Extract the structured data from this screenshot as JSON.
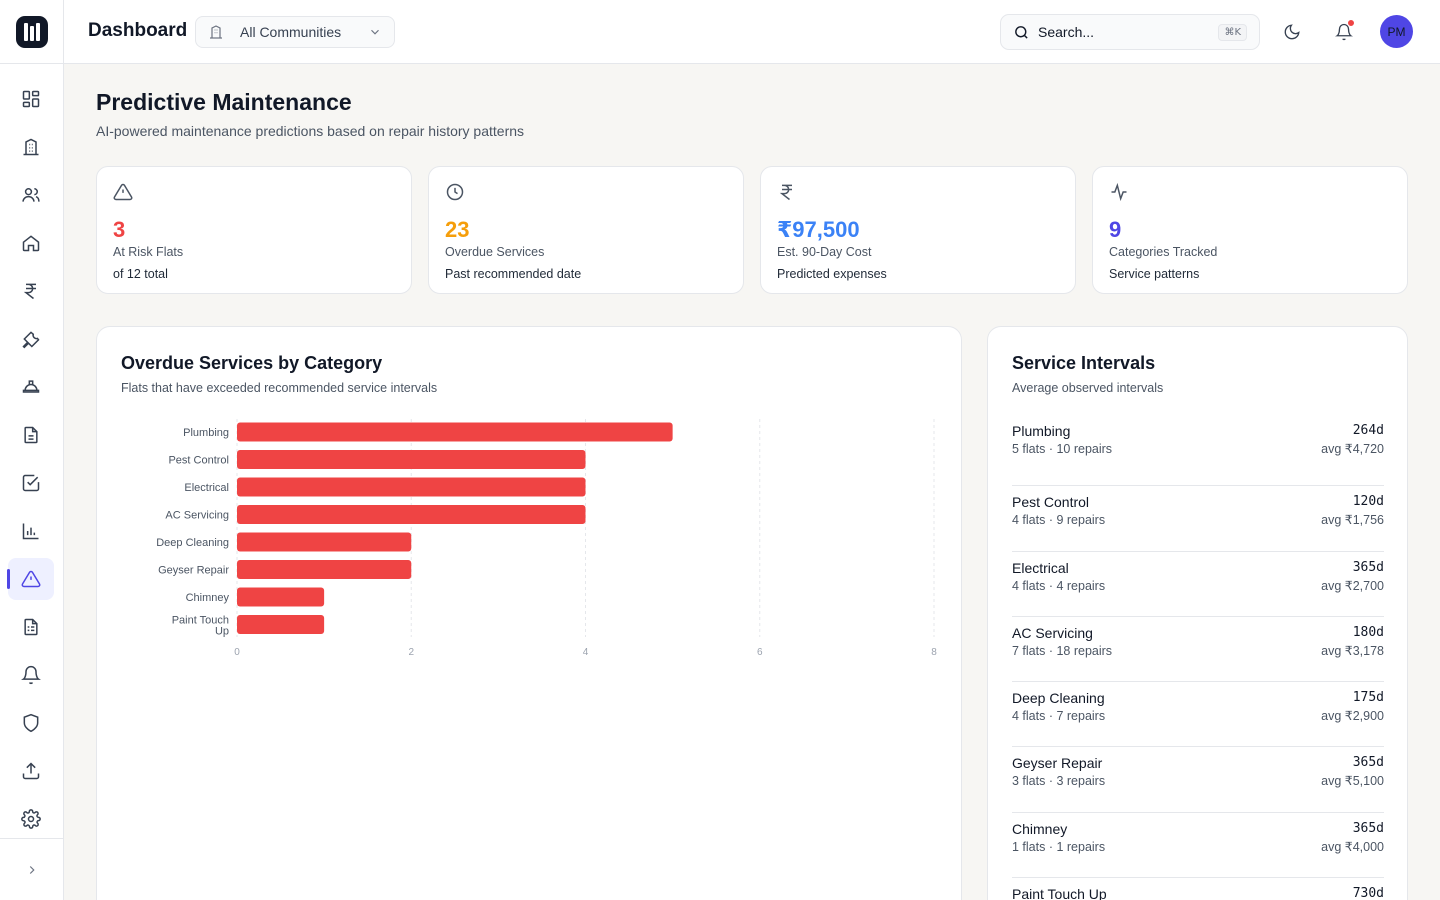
{
  "header": {
    "title": "Dashboard",
    "community_select": "All Communities",
    "search_placeholder": "Search...",
    "search_shortcut": "⌘K",
    "avatar_initials": "PM"
  },
  "sidebar": {
    "items": [
      {
        "icon": "grid-icon",
        "active": false
      },
      {
        "icon": "building-icon",
        "active": false
      },
      {
        "icon": "users-icon",
        "active": false
      },
      {
        "icon": "home-icon",
        "active": false
      },
      {
        "icon": "rupee-icon",
        "active": false
      },
      {
        "icon": "wrench-icon",
        "active": false
      },
      {
        "icon": "hard-hat-icon",
        "active": false
      },
      {
        "icon": "document-icon",
        "active": false
      },
      {
        "icon": "checkbox-icon",
        "active": false
      },
      {
        "icon": "bar-chart-icon",
        "active": false
      },
      {
        "icon": "alert-triangle-icon",
        "active": true
      },
      {
        "icon": "spreadsheet-icon",
        "active": false
      },
      {
        "icon": "bell-icon",
        "active": false
      },
      {
        "icon": "shield-icon",
        "active": false
      },
      {
        "icon": "upload-icon",
        "active": false
      },
      {
        "icon": "settings-icon",
        "active": false
      }
    ]
  },
  "page": {
    "title": "Predictive Maintenance",
    "subtitle": "AI-powered maintenance predictions based on repair history patterns"
  },
  "stats": [
    {
      "icon": "alert-triangle-icon",
      "value": "3",
      "label": "At Risk Flats",
      "sub": "of 12 total",
      "color": "#ef4444"
    },
    {
      "icon": "clock-icon",
      "value": "23",
      "label": "Overdue Services",
      "sub": "Past recommended date",
      "color": "#f59e0b"
    },
    {
      "icon": "rupee-icon",
      "value": "₹97,500",
      "label": "Est. 90-Day Cost",
      "sub": "Predicted expenses",
      "color": "#3b82f6"
    },
    {
      "icon": "activity-icon",
      "value": "9",
      "label": "Categories Tracked",
      "sub": "Service patterns",
      "color": "#4f46e5"
    }
  ],
  "overdue_card": {
    "title": "Overdue Services by Category",
    "subtitle": "Flats that have exceeded recommended service intervals"
  },
  "chart_data": {
    "type": "bar",
    "orientation": "horizontal",
    "categories": [
      "Plumbing",
      "Pest Control",
      "Electrical",
      "AC Servicing",
      "Deep Cleaning",
      "Geyser Repair",
      "Chimney",
      "Paint Touch Up"
    ],
    "values": [
      5,
      4,
      4,
      4,
      2,
      2,
      1,
      1
    ],
    "xlim": [
      0,
      8
    ],
    "xticks": [
      0,
      2,
      4,
      6,
      8
    ],
    "grid": true,
    "bar_color": "#ef4444"
  },
  "intervals_card": {
    "title": "Service Intervals",
    "subtitle": "Average observed intervals",
    "items": [
      {
        "name": "Plumbing",
        "meta": "5 flats · 10 repairs",
        "days": "264d",
        "avg": "avg ₹4,720"
      },
      {
        "name": "Pest Control",
        "meta": "4 flats · 9 repairs",
        "days": "120d",
        "avg": "avg ₹1,756"
      },
      {
        "name": "Electrical",
        "meta": "4 flats · 4 repairs",
        "days": "365d",
        "avg": "avg ₹2,700"
      },
      {
        "name": "AC Servicing",
        "meta": "7 flats · 18 repairs",
        "days": "180d",
        "avg": "avg ₹3,178"
      },
      {
        "name": "Deep Cleaning",
        "meta": "4 flats · 7 repairs",
        "days": "175d",
        "avg": "avg ₹2,900"
      },
      {
        "name": "Geyser Repair",
        "meta": "3 flats · 3 repairs",
        "days": "365d",
        "avg": "avg ₹5,100"
      },
      {
        "name": "Chimney",
        "meta": "1 flats · 1 repairs",
        "days": "365d",
        "avg": "avg ₹4,000"
      },
      {
        "name": "Paint Touch Up",
        "meta": "",
        "days": "730d",
        "avg": ""
      }
    ]
  }
}
